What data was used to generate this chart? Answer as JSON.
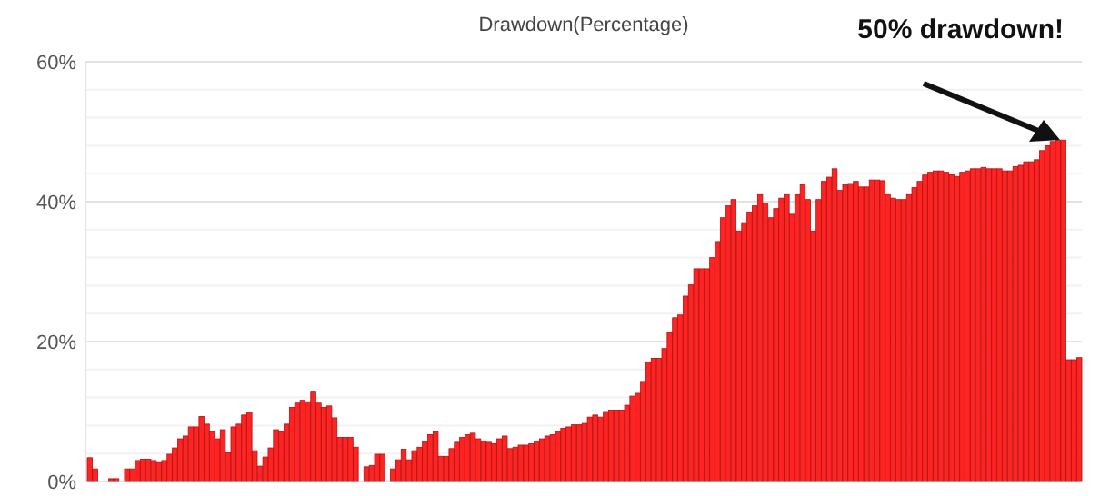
{
  "chart_data": {
    "type": "bar",
    "title": "Drawdown(Percentage)",
    "categories": [
      null,
      null,
      null,
      null,
      null,
      null,
      null,
      null,
      null,
      null,
      null,
      null,
      null,
      null,
      null,
      null,
      null,
      null,
      null,
      null,
      null,
      null,
      null,
      null,
      null,
      null,
      null,
      null,
      null,
      null,
      null,
      null,
      null,
      null,
      null,
      null,
      null,
      null,
      null,
      null,
      null,
      null,
      null,
      null,
      null,
      null,
      null,
      null,
      null,
      null,
      null,
      null,
      null,
      null,
      null,
      null,
      null,
      null,
      null,
      null,
      null,
      null,
      null,
      null,
      null,
      null,
      null,
      null,
      null,
      null,
      null,
      null,
      null,
      null,
      null,
      null,
      null,
      null,
      null,
      null,
      null,
      null,
      null,
      null,
      null,
      null,
      null,
      null,
      null,
      null,
      null,
      null,
      null,
      null,
      null,
      null,
      null,
      null,
      null,
      null,
      null,
      null,
      null,
      null,
      null,
      null,
      null,
      null,
      null,
      null,
      null,
      null,
      null,
      null,
      null,
      null,
      null,
      null,
      null,
      null,
      null,
      null,
      null,
      null,
      null,
      null,
      null,
      null,
      null,
      null,
      null,
      null,
      null,
      null,
      null,
      null,
      null,
      null,
      null,
      null,
      null,
      null,
      null,
      null,
      null,
      null,
      null,
      null,
      null,
      null,
      null,
      null,
      null,
      null,
      null,
      null,
      null,
      null,
      null,
      null,
      null,
      null,
      null,
      null,
      null,
      null,
      null,
      null,
      null,
      null,
      null,
      null,
      null,
      null,
      null,
      null,
      null,
      null,
      null,
      null,
      null,
      null,
      null,
      null,
      null,
      null,
      null
    ],
    "values": [
      3.4,
      1.8,
      0,
      0,
      0.4,
      0.4,
      0,
      1.8,
      1.8,
      3.0,
      3.2,
      3.2,
      3.0,
      2.7,
      3.0,
      3.9,
      4.8,
      6.1,
      6.5,
      7.8,
      7.8,
      9.3,
      8.2,
      7.2,
      6.1,
      7.4,
      4.1,
      7.8,
      8.2,
      9.5,
      9.9,
      4.4,
      2.2,
      3.5,
      4.8,
      7.4,
      7.2,
      8.2,
      10.6,
      11.2,
      11.6,
      11.4,
      12.9,
      11.2,
      10.6,
      10.8,
      9.1,
      6.3,
      6.3,
      6.3,
      4.9,
      0,
      2.1,
      2.3,
      3.9,
      3.9,
      0,
      1.8,
      3.1,
      4.6,
      3.1,
      4.4,
      4.9,
      5.7,
      6.7,
      7.2,
      3.6,
      3.6,
      4.7,
      5.6,
      6.3,
      6.7,
      6.9,
      6.1,
      5.8,
      5.6,
      5.4,
      6.1,
      6.5,
      4.7,
      4.9,
      5.2,
      5.2,
      5.4,
      5.8,
      6.1,
      6.5,
      6.7,
      7.2,
      7.6,
      7.8,
      8.1,
      8.1,
      8.3,
      9.2,
      9.5,
      9.2,
      10,
      10.2,
      10.2,
      10.2,
      10.9,
      12.2,
      12.6,
      14.3,
      17.1,
      17.6,
      17.6,
      19,
      21.3,
      23.4,
      23.8,
      26.5,
      28.1,
      30.4,
      30.4,
      30.4,
      32,
      34.3,
      37.7,
      39.4,
      40.3,
      35.8,
      37,
      38.5,
      39.4,
      41,
      39.8,
      37.7,
      39,
      40.5,
      41,
      38.2,
      41,
      42.4,
      40.3,
      35.8,
      40.3,
      42.9,
      43.5,
      44.7,
      41.6,
      42.4,
      42.6,
      42.9,
      42.1,
      42.1,
      43.1,
      43.1,
      43,
      41,
      40.5,
      40.3,
      40.3,
      41,
      42,
      42.9,
      43.8,
      44.2,
      44.4,
      44.4,
      44.2,
      43.9,
      43.6,
      44.2,
      44.4,
      44.7,
      44.7,
      44.9,
      44.7,
      44.7,
      44.7,
      44.4,
      44.4,
      45,
      45.2,
      45.7,
      45.7,
      46,
      47.3,
      48,
      48.6,
      48.8,
      48.8,
      17.4,
      17.4,
      17.7
    ],
    "color": "#ff2424",
    "ylim": [
      0,
      60
    ],
    "yticks": [
      {
        "value": 0,
        "label": "0%"
      },
      {
        "value": 4,
        "label": null
      },
      {
        "value": 8,
        "label": null
      },
      {
        "value": 12,
        "label": null
      },
      {
        "value": 16,
        "label": null
      },
      {
        "value": 20,
        "label": "20%"
      },
      {
        "value": 24,
        "label": null
      },
      {
        "value": 28,
        "label": null
      },
      {
        "value": 32,
        "label": null
      },
      {
        "value": 36,
        "label": null
      },
      {
        "value": 40,
        "label": "40%"
      },
      {
        "value": 44,
        "label": null
      },
      {
        "value": 48,
        "label": null
      },
      {
        "value": 52,
        "label": null
      },
      {
        "value": 56,
        "label": null
      },
      {
        "value": 60,
        "label": "60%"
      }
    ],
    "grid": "y",
    "annotations": [
      "50% drawdown!"
    ]
  }
}
